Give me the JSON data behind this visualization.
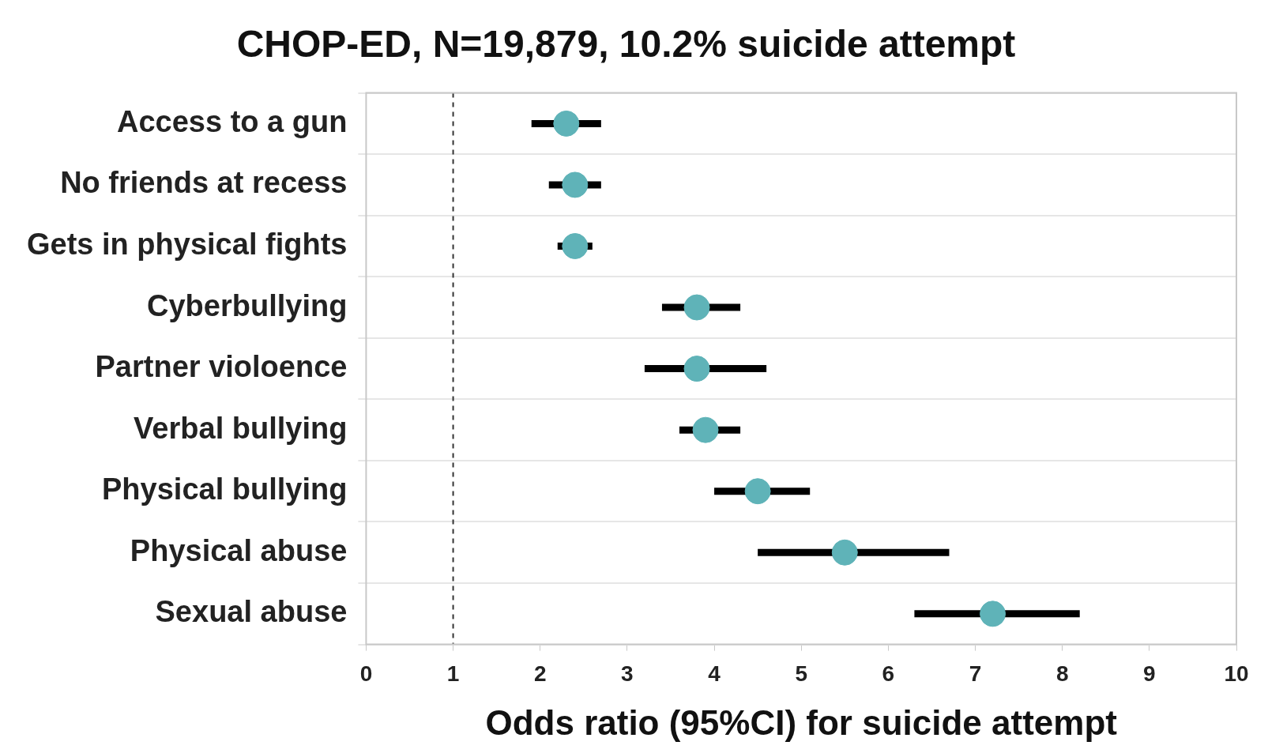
{
  "chart_data": {
    "type": "scatter",
    "orientation": "horizontal",
    "title": "CHOP-ED, N=19,879, 10.2% suicide attempt",
    "xlabel": "Odds ratio (95%CI) for suicide attempt",
    "categories": [
      "Access to a gun",
      "No friends at recess",
      "Gets in physical fights",
      "Cyberbullying",
      "Partner violoence",
      "Verbal bullying",
      "Physical bullying",
      "Physical abuse",
      "Sexual abuse"
    ],
    "values": [
      2.3,
      2.4,
      2.4,
      3.8,
      3.8,
      3.9,
      4.5,
      5.5,
      7.2
    ],
    "errors": [
      [
        1.9,
        2.7
      ],
      [
        2.1,
        2.7
      ],
      [
        2.2,
        2.6
      ],
      [
        3.4,
        4.3
      ],
      [
        3.2,
        4.6
      ],
      [
        3.6,
        4.3
      ],
      [
        4.0,
        5.1
      ],
      [
        4.5,
        6.7
      ],
      [
        6.3,
        8.2
      ]
    ],
    "color": "#5fb3b8",
    "marker": "circle",
    "xlim": [
      0,
      10
    ],
    "xticks": [
      0,
      1,
      2,
      3,
      4,
      5,
      6,
      7,
      8,
      9,
      10
    ],
    "ref_lines": [
      {
        "axis": "x",
        "value": 1,
        "color": "#333333",
        "line_style": "dashed"
      }
    ],
    "grid": "y",
    "legend": false
  }
}
